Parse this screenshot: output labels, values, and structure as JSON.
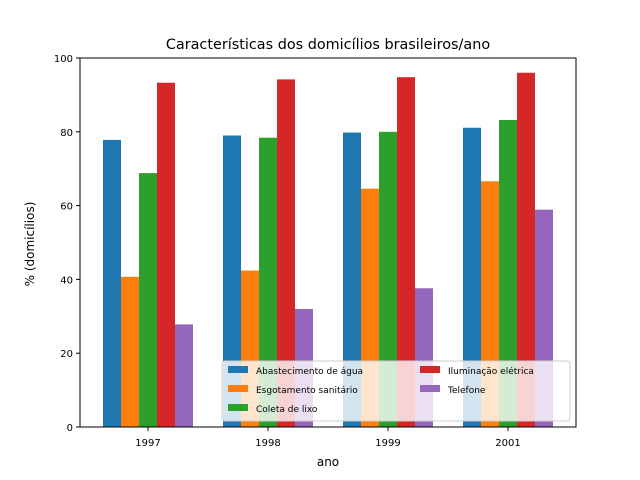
{
  "chart_data": {
    "type": "bar",
    "title": "Características dos domicílios brasileiros/ano",
    "xlabel": "ano",
    "ylabel": "% (domicílios)",
    "categories": [
      "1997",
      "1998",
      "1999",
      "2001"
    ],
    "ylim": [
      0,
      100
    ],
    "yticks": [
      0,
      20,
      40,
      60,
      80,
      100
    ],
    "grid": false,
    "legend_position": "lower-right",
    "legend_columns": 2,
    "series": [
      {
        "name": "Abastecimento de água",
        "color": "#1f77b4",
        "values": [
          77.8,
          79.0,
          79.8,
          81.1
        ]
      },
      {
        "name": "Esgotamento sanitário",
        "color": "#ff7f0e",
        "values": [
          40.7,
          42.4,
          64.6,
          66.6
        ]
      },
      {
        "name": "Coleta de lixo",
        "color": "#2ca02c",
        "values": [
          68.8,
          78.4,
          80.0,
          83.2
        ]
      },
      {
        "name": "Iluminação elétrica",
        "color": "#d62728",
        "values": [
          93.3,
          94.2,
          94.8,
          96.0
        ]
      },
      {
        "name": "Telefone",
        "color": "#9467bd",
        "values": [
          27.8,
          32.0,
          37.6,
          58.9
        ]
      }
    ]
  }
}
